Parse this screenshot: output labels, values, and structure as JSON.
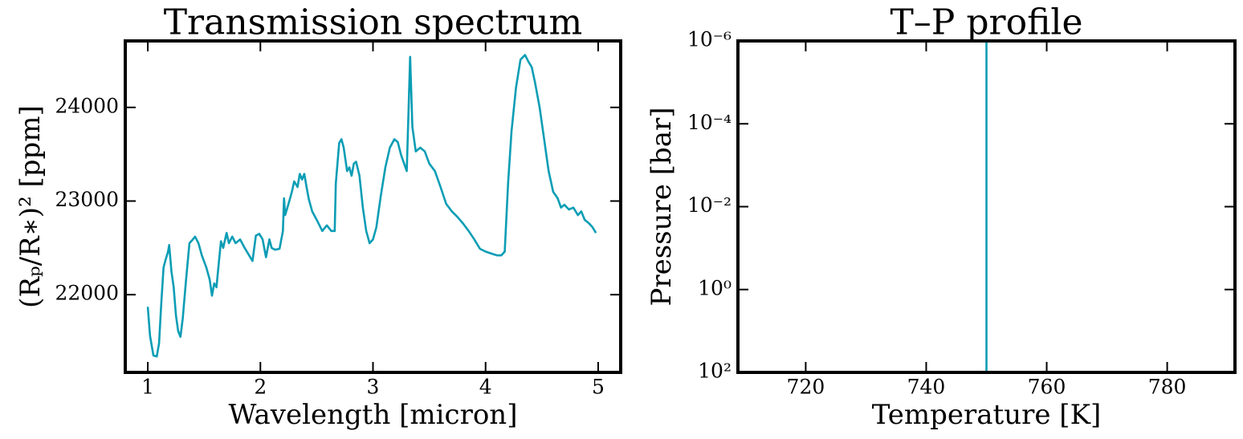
{
  "chart_data": [
    {
      "type": "line",
      "title": "Transmission spectrum",
      "xlabel": "Wavelength [micron]",
      "ylabel": "(Rₚ/R∗)² [ppm]",
      "x": [
        1.0,
        1.02,
        1.05,
        1.08,
        1.1,
        1.12,
        1.14,
        1.16,
        1.18,
        1.19,
        1.21,
        1.23,
        1.25,
        1.27,
        1.29,
        1.31,
        1.34,
        1.37,
        1.4,
        1.42,
        1.45,
        1.48,
        1.52,
        1.55,
        1.57,
        1.59,
        1.61,
        1.63,
        1.65,
        1.67,
        1.7,
        1.72,
        1.75,
        1.78,
        1.82,
        1.86,
        1.9,
        1.93,
        1.96,
        1.99,
        2.02,
        2.05,
        2.08,
        2.1,
        2.13,
        2.17,
        2.2,
        2.21,
        2.22,
        2.25,
        2.28,
        2.3,
        2.33,
        2.35,
        2.37,
        2.39,
        2.41,
        2.43,
        2.46,
        2.5,
        2.55,
        2.59,
        2.63,
        2.66,
        2.67,
        2.7,
        2.72,
        2.74,
        2.77,
        2.79,
        2.81,
        2.83,
        2.85,
        2.88,
        2.91,
        2.94,
        2.97,
        3.0,
        3.03,
        3.07,
        3.11,
        3.15,
        3.19,
        3.22,
        3.25,
        3.3,
        3.33,
        3.35,
        3.38,
        3.42,
        3.46,
        3.5,
        3.55,
        3.6,
        3.65,
        3.7,
        3.75,
        3.8,
        3.85,
        3.9,
        3.95,
        4.0,
        4.05,
        4.1,
        4.14,
        4.17,
        4.2,
        4.23,
        4.27,
        4.31,
        4.35,
        4.38,
        4.41,
        4.44,
        4.48,
        4.52,
        4.56,
        4.6,
        4.64,
        4.67,
        4.7,
        4.74,
        4.78,
        4.82,
        4.85,
        4.88,
        4.92,
        4.95,
        4.98
      ],
      "series": [
        {
          "color": "#0b9db5",
          "values": [
            21870,
            21560,
            21350,
            21340,
            21480,
            21910,
            22290,
            22380,
            22460,
            22530,
            22250,
            22080,
            21780,
            21610,
            21550,
            21740,
            22160,
            22550,
            22590,
            22620,
            22550,
            22420,
            22290,
            22160,
            21990,
            22120,
            22080,
            22330,
            22570,
            22500,
            22660,
            22550,
            22620,
            22550,
            22590,
            22500,
            22420,
            22360,
            22630,
            22650,
            22590,
            22400,
            22590,
            22500,
            22480,
            22490,
            22680,
            23030,
            22850,
            22970,
            23100,
            23210,
            23150,
            23290,
            23230,
            23290,
            23150,
            23020,
            22890,
            22800,
            22680,
            22740,
            22680,
            22680,
            23190,
            23620,
            23660,
            23570,
            23320,
            23360,
            23270,
            23400,
            23420,
            23270,
            22930,
            22680,
            22550,
            22590,
            22720,
            23060,
            23360,
            23570,
            23660,
            23630,
            23490,
            23320,
            24540,
            23790,
            23530,
            23570,
            23530,
            23400,
            23320,
            23150,
            22970,
            22890,
            22830,
            22760,
            22680,
            22590,
            22490,
            22460,
            22440,
            22420,
            22420,
            22460,
            23190,
            23740,
            24210,
            24510,
            24560,
            24490,
            24430,
            24260,
            24000,
            23660,
            23320,
            23100,
            23030,
            22930,
            22960,
            22910,
            22930,
            22850,
            22890,
            22800,
            22760,
            22720,
            22660
          ]
        }
      ],
      "xlim": [
        0.8,
        5.2
      ],
      "xticks": [
        1,
        2,
        3,
        4,
        5
      ],
      "ylim": [
        21170,
        24710
      ],
      "yticks": [
        22000,
        23000,
        24000
      ]
    },
    {
      "type": "line",
      "title": "T–P profile",
      "xlabel": "Temperature [K]",
      "ylabel": "Pressure [bar]",
      "x": [
        750,
        750
      ],
      "series": [
        {
          "color": "#0b9db5",
          "values": [
            100,
            1e-06
          ]
        }
      ],
      "xlim": [
        708.75,
        791.25
      ],
      "xticks": [
        720,
        740,
        760,
        780
      ],
      "yscale": "log",
      "ylim": [
        100,
        1e-06
      ],
      "yticks": [
        {
          "value": 1e-06,
          "label": "10⁻⁶"
        },
        {
          "value": 0.0001,
          "label": "10⁻⁴"
        },
        {
          "value": 0.01,
          "label": "10⁻²"
        },
        {
          "value": 1,
          "label": "10⁰"
        },
        {
          "value": 100,
          "label": "10²"
        }
      ]
    }
  ]
}
